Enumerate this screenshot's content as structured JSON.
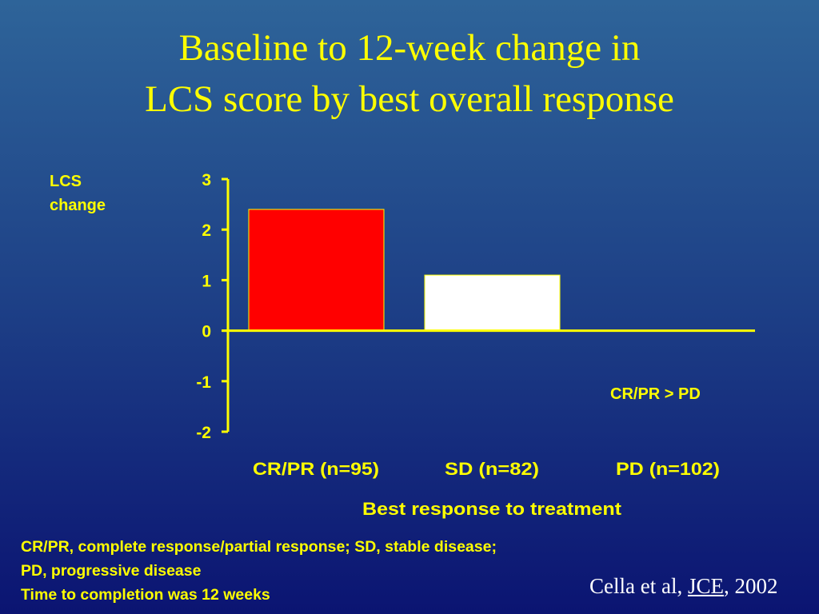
{
  "title": {
    "line1": "Baseline to 12-week change in",
    "line2": "LCS score by best overall response"
  },
  "chart_data": {
    "type": "bar",
    "categories": [
      "CR/PR (n=95)",
      "SD (n=82)",
      "PD (n=102)"
    ],
    "values": [
      2.4,
      1.1,
      0.0
    ],
    "bar_colors": [
      "#ff0000",
      "#ffffff",
      "#ffffff"
    ],
    "ylabel_line1": "LCS",
    "ylabel_line2": "change",
    "xlabel": "Best response to treatment",
    "ylim": [
      -2,
      3
    ],
    "yticks": [
      "3",
      "2",
      "1",
      "0",
      "-1",
      "-2"
    ],
    "annotation": "CR/PR > PD",
    "axis_color": "#ffff00",
    "label_color": "#ffff00"
  },
  "footnotes": {
    "line1": "CR/PR, complete response/partial response; SD, stable disease;",
    "line2": "PD, progressive disease",
    "line3": "Time to completion was 12 weeks"
  },
  "citation": {
    "authors": "Cella et al, ",
    "journal": "JCE",
    "year": ", 2002"
  }
}
